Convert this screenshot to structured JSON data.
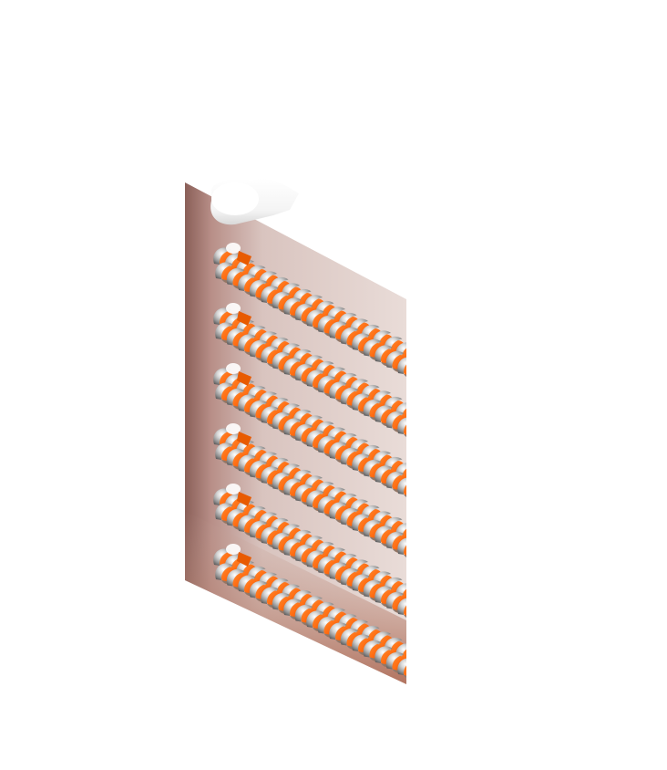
{
  "figure": {
    "subject": "coil-bank-render",
    "colors": {
      "background": "#ffffff",
      "backplate_dark": "#8a5f58",
      "backplate_light": "#cdb3ad",
      "copper_bright": "#ff6a10",
      "copper_dark": "#d94b00",
      "steel_light": "#f2f2f2",
      "steel_mid": "#b9b9b9",
      "steel_dark": "#6f6f6f"
    },
    "coil_rows": 6
  }
}
